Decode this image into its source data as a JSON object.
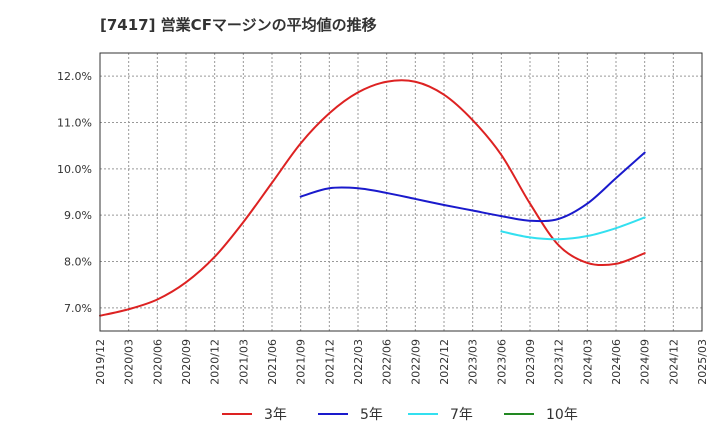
{
  "page": {
    "title": "[7417]  営業CFマージンの平均値の推移"
  },
  "chart_data": {
    "type": "line",
    "title": "[7417]  営業CFマージンの平均値の推移",
    "xlabel": "",
    "ylabel": "",
    "x_ticks": [
      "2019/12",
      "2020/03",
      "2020/06",
      "2020/09",
      "2020/12",
      "2021/03",
      "2021/06",
      "2021/09",
      "2021/12",
      "2022/03",
      "2022/06",
      "2022/09",
      "2022/12",
      "2023/03",
      "2023/06",
      "2023/09",
      "2023/12",
      "2024/03",
      "2024/06",
      "2024/09",
      "2024/12",
      "2025/03"
    ],
    "y_ticks": [
      "7.0%",
      "8.0%",
      "9.0%",
      "10.0%",
      "11.0%",
      "12.0%"
    ],
    "ylim": [
      6.5,
      12.5
    ],
    "grid": true,
    "legend_position": "bottom",
    "series": [
      {
        "name": "3年",
        "color": "#dd2222",
        "x": [
          "2019/12",
          "2020/03",
          "2020/06",
          "2020/09",
          "2020/12",
          "2021/03",
          "2021/06",
          "2021/09",
          "2021/12",
          "2022/03",
          "2022/06",
          "2022/09",
          "2022/12",
          "2023/03",
          "2023/06",
          "2023/09",
          "2023/12",
          "2024/03",
          "2024/06",
          "2024/09"
        ],
        "values": [
          6.83,
          6.97,
          7.18,
          7.55,
          8.1,
          8.85,
          9.7,
          10.55,
          11.2,
          11.65,
          11.88,
          11.88,
          11.6,
          11.05,
          10.3,
          9.25,
          8.35,
          7.97,
          7.95,
          8.18
        ]
      },
      {
        "name": "5年",
        "color": "#1a1acc",
        "x": [
          "2021/09",
          "2021/12",
          "2022/03",
          "2022/06",
          "2022/09",
          "2022/12",
          "2023/03",
          "2023/06",
          "2023/09",
          "2023/12",
          "2024/03",
          "2024/06",
          "2024/09"
        ],
        "values": [
          9.4,
          9.58,
          9.58,
          9.48,
          9.35,
          9.22,
          9.1,
          8.98,
          8.88,
          8.92,
          9.25,
          9.8,
          10.35
        ]
      },
      {
        "name": "7年",
        "color": "#33e0f0",
        "x": [
          "2023/06",
          "2023/09",
          "2023/12",
          "2024/03",
          "2024/06",
          "2024/09"
        ],
        "values": [
          8.65,
          8.52,
          8.48,
          8.55,
          8.72,
          8.95
        ]
      },
      {
        "name": "10年",
        "color": "#228822",
        "x": [],
        "values": []
      }
    ]
  }
}
